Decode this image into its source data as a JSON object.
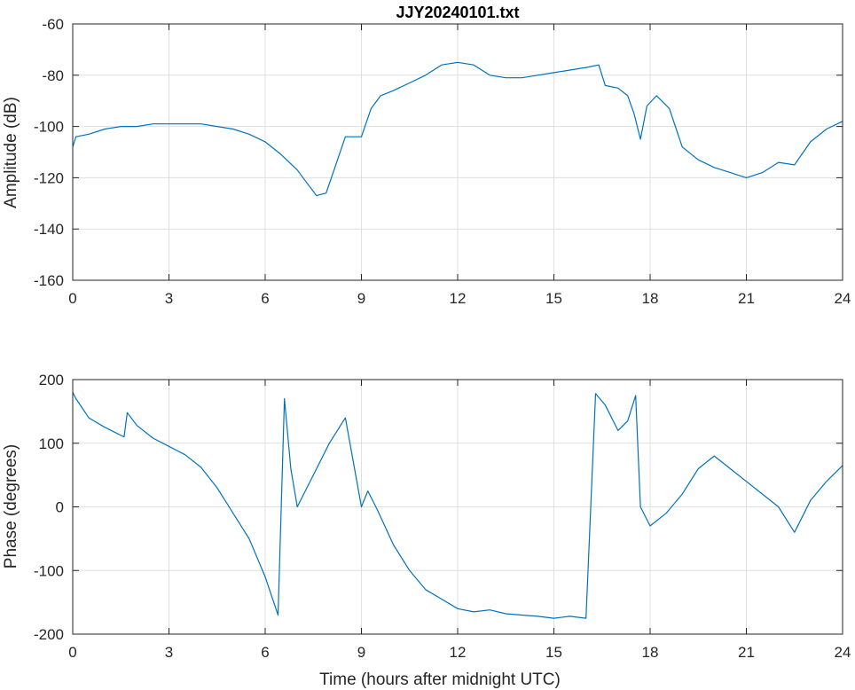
{
  "chart_data": [
    {
      "type": "line",
      "title": "JJY20240101.txt",
      "xlabel": "",
      "ylabel": "Amplitude (dB)",
      "xlim": [
        0,
        24
      ],
      "ylim": [
        -160,
        -60
      ],
      "xticks": [
        0,
        3,
        6,
        9,
        12,
        15,
        18,
        21,
        24
      ],
      "yticks": [
        -60,
        -80,
        -100,
        -120,
        -140,
        -160
      ],
      "grid": true,
      "color": "#0072BD",
      "series": [
        {
          "x": [
            0,
            0.1,
            0.5,
            1,
            1.5,
            2,
            2.5,
            3,
            3.5,
            4,
            4.5,
            5,
            5.5,
            6,
            6.5,
            7,
            7.3,
            7.6,
            7.9,
            8.2,
            8.5,
            9,
            9.3,
            9.6,
            10,
            10.5,
            11,
            11.5,
            12,
            12.5,
            13,
            13.5,
            14,
            14.5,
            15,
            15.5,
            16,
            16.4,
            16.6,
            17,
            17.3,
            17.5,
            17.7,
            17.9,
            18.2,
            18.6,
            19,
            19.5,
            20,
            20.5,
            21,
            21.5,
            22,
            22.5,
            23,
            23.5,
            24
          ],
          "y": [
            -108,
            -104,
            -103,
            -101,
            -100,
            -100,
            -99,
            -99,
            -99,
            -99,
            -100,
            -101,
            -103,
            -106,
            -111,
            -117,
            -122,
            -127,
            -126,
            -115,
            -104,
            -104,
            -93,
            -88,
            -86,
            -83,
            -80,
            -76,
            -75,
            -76,
            -80,
            -81,
            -81,
            -80,
            -79,
            -78,
            -77,
            -76,
            -84,
            -85,
            -88,
            -95,
            -105,
            -92,
            -88,
            -93,
            -108,
            -113,
            -116,
            -118,
            -120,
            -118,
            -114,
            -115,
            -106,
            -101,
            -98
          ]
        }
      ]
    },
    {
      "type": "line",
      "title": "",
      "xlabel": "Time (hours after midnight UTC)",
      "ylabel": "Phase (degrees)",
      "xlim": [
        0,
        24
      ],
      "ylim": [
        -200,
        200
      ],
      "xticks": [
        0,
        3,
        6,
        9,
        12,
        15,
        18,
        21,
        24
      ],
      "yticks": [
        200,
        100,
        0,
        -100,
        -200
      ],
      "grid": true,
      "color": "#0072BD",
      "series": [
        {
          "x": [
            0,
            0.1,
            0.5,
            1,
            1.6,
            1.7,
            2,
            2.5,
            3,
            3.5,
            4,
            4.5,
            5,
            5.5,
            6,
            6.4,
            6.6,
            6.8,
            7,
            7.5,
            8,
            8.5,
            9,
            9.2,
            9.5,
            10,
            10.5,
            11,
            11.5,
            12,
            12.5,
            13,
            13.5,
            14,
            14.5,
            15,
            15.5,
            16,
            16.3,
            16.6,
            17,
            17.3,
            17.55,
            17.7,
            18,
            18.5,
            19,
            19.5,
            20,
            20.5,
            21,
            21.5,
            22,
            22.5,
            23,
            23.5,
            24
          ],
          "y": [
            180,
            170,
            140,
            125,
            110,
            148,
            128,
            108,
            95,
            82,
            62,
            30,
            -10,
            -50,
            -110,
            -170,
            170,
            60,
            0,
            50,
            100,
            140,
            0,
            25,
            -5,
            -60,
            -100,
            -130,
            -145,
            -160,
            -165,
            -162,
            -168,
            -170,
            -172,
            -175,
            -172,
            -175,
            178,
            160,
            120,
            135,
            175,
            0,
            -30,
            -10,
            20,
            60,
            80,
            60,
            40,
            20,
            0,
            -40,
            10,
            40,
            65
          ]
        }
      ]
    }
  ]
}
